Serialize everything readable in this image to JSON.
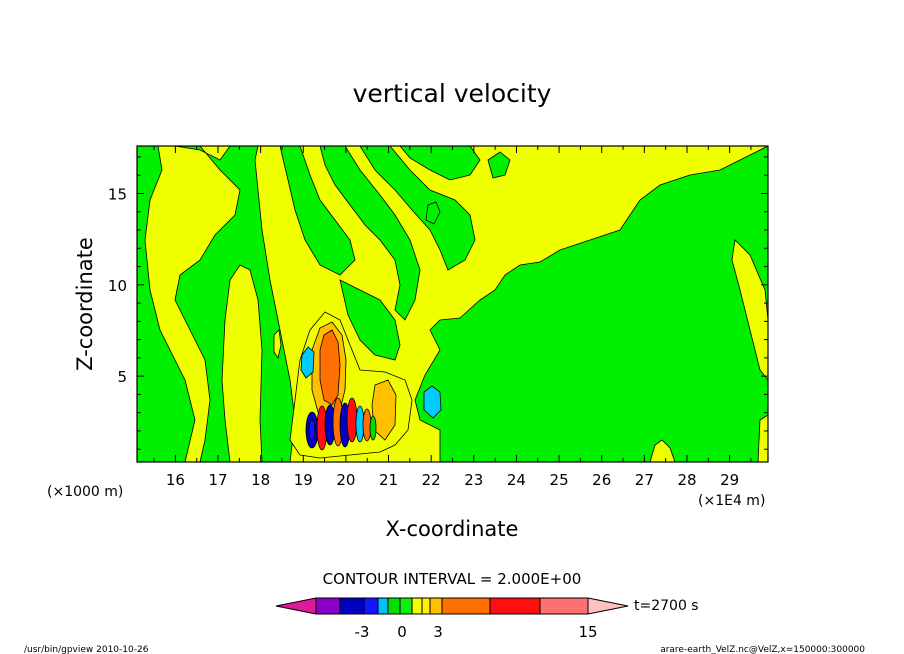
{
  "chart_data": {
    "type": "heatmap",
    "title": "vertical velocity",
    "xlabel": "X-coordinate",
    "ylabel": "Z-coordinate",
    "x_unit_left": "(×1000 m)",
    "x_unit_right": "(×1E4 m)",
    "xlim": [
      15.1,
      29.9
    ],
    "ylim": [
      0.3,
      17.6
    ],
    "x_ticks": [
      16,
      17,
      18,
      19,
      20,
      21,
      22,
      23,
      24,
      25,
      26,
      27,
      28,
      29
    ],
    "y_ticks": [
      5,
      10,
      15
    ],
    "contour_interval_text": "CONTOUR INTERVAL = 2.000E+00",
    "time_label": "t=2700 s",
    "colorbar": {
      "colors": [
        "#e0199a",
        "#8b00c8",
        "#0000c0",
        "#1414ff",
        "#00bfff",
        "#00e000",
        "#10f010",
        "#f2ff00",
        "#fff000",
        "#ffc000",
        "#ff7000",
        "#ff1010",
        "#ff7070",
        "#ffc0c0"
      ],
      "tick_labels": [
        "-3",
        "0",
        "3",
        "15"
      ]
    },
    "fields": {
      "background_value": "yellow",
      "cells_note": "vertical velocity field in m/s"
    }
  },
  "footer": {
    "left": "/usr/bin/gpview   2010-10-26",
    "right": "arare-earth_VelZ.nc@VelZ,x=150000:300000"
  },
  "colors": {
    "green": "#00f000",
    "yellow": "#f0ff00",
    "orange": "#ff7000",
    "cyan": "#00ccff",
    "blue": "#0000c0",
    "red": "#ff1010"
  }
}
